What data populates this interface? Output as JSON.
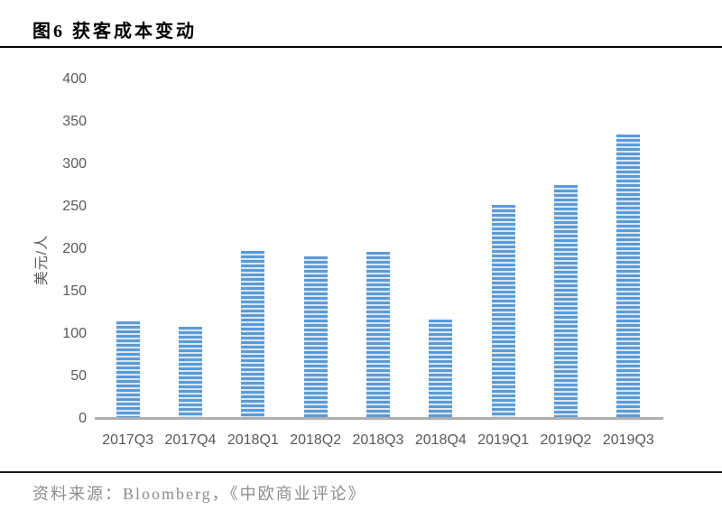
{
  "header": {
    "title": "图6 获客成本变动"
  },
  "footer": {
    "source": "资料来源：Bloomberg，《中欧商业评论》"
  },
  "chart_data": {
    "type": "bar",
    "title": "图6 获客成本变动",
    "categories": [
      "2017Q3",
      "2017Q4",
      "2018Q1",
      "2018Q2",
      "2018Q3",
      "2018Q4",
      "2019Q1",
      "2019Q2",
      "2019Q3"
    ],
    "values": [
      115,
      108,
      198,
      192,
      197,
      117,
      252,
      276,
      335
    ],
    "xlabel": "",
    "ylabel": "美元/人",
    "ylim": [
      0,
      400
    ],
    "yticks": [
      0,
      50,
      100,
      150,
      200,
      250,
      300,
      350,
      400
    ],
    "grid": false,
    "legend": "none",
    "bar_fill_style": "horizontal-stripes",
    "bar_color": "#5B9BD5",
    "bar_stripe_color": "#D9E7F6",
    "axis_line_color": "#AEAEAE",
    "tick_label_color": "#595959",
    "source_text": "资料来源：Bloomberg，《中欧商业评论》"
  }
}
